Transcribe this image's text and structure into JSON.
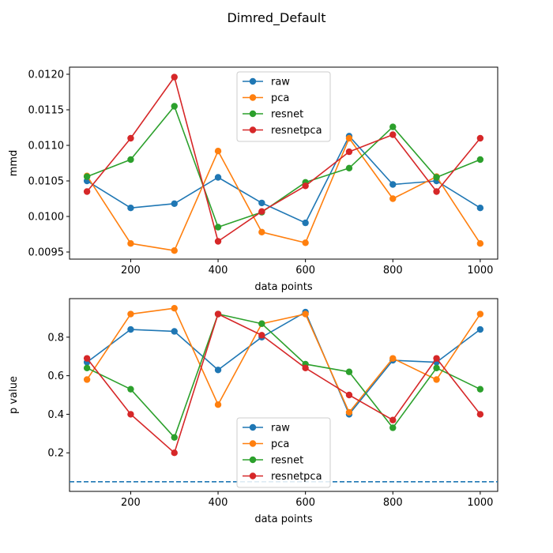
{
  "title": "Dimred_Default",
  "chart_data": [
    {
      "type": "line",
      "xlabel": "data points",
      "ylabel": "mmd",
      "x": [
        100,
        200,
        300,
        400,
        500,
        600,
        700,
        800,
        900,
        1000
      ],
      "xlim": [
        60,
        1040
      ],
      "ylim": [
        0.0094,
        0.0121
      ],
      "xticks": [
        "200",
        "400",
        "600",
        "800",
        "1000"
      ],
      "yticks": [
        "0.0095",
        "0.0100",
        "0.0105",
        "0.0110",
        "0.0115",
        "0.0120"
      ],
      "legend_position": "upper center",
      "series": [
        {
          "name": "raw",
          "color": "#1f77b4",
          "values": [
            0.0105,
            0.01012,
            0.01018,
            0.01055,
            0.01019,
            0.00991,
            0.01113,
            0.01045,
            0.0105,
            0.01012
          ]
        },
        {
          "name": "pca",
          "color": "#ff7f0e",
          "values": [
            0.01057,
            0.00962,
            0.00952,
            0.01092,
            0.00978,
            0.00963,
            0.0111,
            0.01025,
            0.01056,
            0.00962
          ]
        },
        {
          "name": "resnet",
          "color": "#2ca02c",
          "values": [
            0.01056,
            0.0108,
            0.01155,
            0.00985,
            0.01006,
            0.01048,
            0.01068,
            0.01126,
            0.01055,
            0.0108
          ]
        },
        {
          "name": "resnetpca",
          "color": "#d62728",
          "values": [
            0.01035,
            0.0111,
            0.01196,
            0.00965,
            0.01007,
            0.01043,
            0.01091,
            0.01115,
            0.01035,
            0.0111
          ]
        }
      ]
    },
    {
      "type": "line",
      "xlabel": "data points",
      "ylabel": "p value",
      "x": [
        100,
        200,
        300,
        400,
        500,
        600,
        700,
        800,
        900,
        1000
      ],
      "xlim": [
        60,
        1040
      ],
      "ylim": [
        0.0,
        1.0
      ],
      "xticks": [
        "200",
        "400",
        "600",
        "800",
        "1000"
      ],
      "yticks": [
        "0.2",
        "0.4",
        "0.6",
        "0.8"
      ],
      "legend_position": "lower center",
      "reference_line": {
        "y": 0.05,
        "style": "dashed",
        "color": "#1f77b4"
      },
      "series": [
        {
          "name": "raw",
          "color": "#1f77b4",
          "values": [
            0.67,
            0.84,
            0.83,
            0.63,
            0.8,
            0.93,
            0.4,
            0.68,
            0.67,
            0.84
          ]
        },
        {
          "name": "pca",
          "color": "#ff7f0e",
          "values": [
            0.58,
            0.92,
            0.95,
            0.45,
            0.87,
            0.92,
            0.41,
            0.69,
            0.58,
            0.92
          ]
        },
        {
          "name": "resnet",
          "color": "#2ca02c",
          "values": [
            0.64,
            0.53,
            0.28,
            0.92,
            0.87,
            0.66,
            0.62,
            0.33,
            0.64,
            0.53
          ]
        },
        {
          "name": "resnetpca",
          "color": "#d62728",
          "values": [
            0.69,
            0.4,
            0.2,
            0.92,
            0.81,
            0.64,
            0.5,
            0.37,
            0.69,
            0.4
          ]
        }
      ]
    }
  ]
}
